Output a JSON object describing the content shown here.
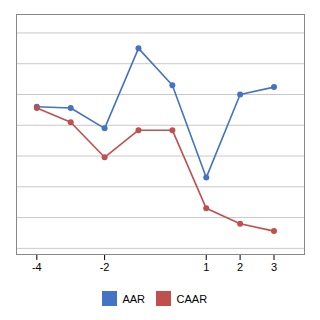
{
  "chart_data": {
    "type": "line",
    "x": [
      -4,
      -3,
      -2,
      -1,
      0,
      1,
      2,
      3
    ],
    "series": [
      {
        "name": "AAR",
        "color": "#4472C4",
        "marker": "circle",
        "values": [
          0.3,
          0.28,
          -0.05,
          1.25,
          0.65,
          -0.85,
          0.5,
          0.62
        ]
      },
      {
        "name": "CAAR",
        "color": "#C0504D",
        "marker": "circle",
        "values": [
          0.28,
          0.05,
          -0.52,
          -0.08,
          -0.08,
          -1.35,
          -1.6,
          -1.72
        ]
      }
    ],
    "xlim": [
      -4.6,
      3.9
    ],
    "xticks": [
      -4,
      -2,
      1,
      2,
      3
    ],
    "ylim": [
      -2.1,
      1.8
    ],
    "yticks": [
      -2.0,
      -1.5,
      -1.0,
      -0.5,
      0.0,
      0.5,
      1.0,
      1.5
    ],
    "grid": true,
    "tick_labels": "x",
    "legend": "bottom"
  }
}
